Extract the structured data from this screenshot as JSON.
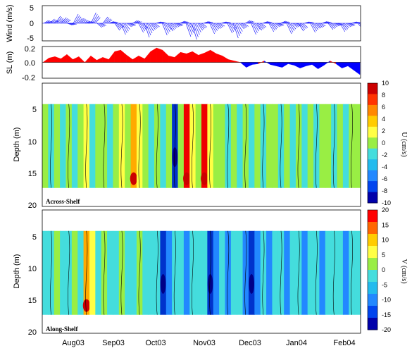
{
  "chart_data": [
    {
      "type": "vector",
      "ylabel": "Wind (m/s)",
      "yticks": [
        "5",
        "0",
        "-5"
      ],
      "ylim": [
        -5,
        5
      ],
      "series_color": "#1a1aff",
      "wind_v": [
        0.8,
        1.2,
        2.0,
        1.6,
        -0.5,
        2.6,
        1.4,
        0.6,
        3.0,
        -1.2,
        1.8,
        0.5,
        -2.0,
        -3.2,
        -1.0,
        0.8,
        -2.6,
        -4.0,
        -1.8,
        0.4,
        -3.4,
        -2.2,
        -1.0,
        0.6,
        -3.8,
        -4.6,
        -2.0,
        0.5,
        -3.0,
        -1.5,
        0.4,
        -2.8,
        -4.2,
        -1.6,
        0.8,
        -3.2,
        -2.0,
        0.5,
        -2.4,
        -1.0,
        0.6,
        -3.0,
        -1.2,
        -2.2,
        0.4,
        -2.6,
        -1.4,
        0.5,
        -1.8,
        -0.8,
        -2.4,
        -1.0,
        0.4,
        -1.6
      ]
    },
    {
      "type": "area",
      "ylabel": "SL (m)",
      "yticks": [
        "0.2",
        "0.0",
        "-0.2"
      ],
      "ylim": [
        -0.22,
        0.22
      ],
      "positive_color": "#ff0000",
      "negative_color": "#0000ff",
      "sea_level": [
        0.0,
        0.06,
        0.08,
        0.05,
        0.11,
        0.04,
        0.08,
        0.0,
        0.09,
        0.03,
        0.07,
        0.04,
        0.15,
        0.17,
        0.1,
        0.04,
        0.09,
        0.05,
        0.15,
        0.2,
        0.17,
        0.09,
        0.07,
        0.14,
        0.12,
        0.15,
        0.1,
        0.13,
        0.17,
        0.12,
        0.09,
        0.04,
        0.02,
        0.0,
        -0.07,
        -0.03,
        -0.02,
        0.02,
        -0.03,
        -0.05,
        -0.07,
        -0.02,
        -0.04,
        -0.08,
        -0.05,
        -0.03,
        -0.09,
        -0.04,
        0.02,
        -0.02,
        -0.08,
        -0.05,
        -0.11,
        -0.17
      ]
    },
    {
      "type": "heatmap",
      "ylabel": "Depth (m)",
      "yticks": [
        "5",
        "10",
        "15",
        "20"
      ],
      "ylim": [
        20,
        0
      ],
      "panel_label": "Across-Shelf",
      "colorbar_label": "U (cm/s)",
      "colorbar_ticks": [
        "10",
        "8",
        "6",
        "4",
        "2",
        "0",
        "-2",
        "-4",
        "-6",
        "-8",
        "-10"
      ],
      "colorbar_colors": [
        "#cc0000",
        "#ff3300",
        "#ff8800",
        "#ffcc00",
        "#ffff44",
        "#99ee44",
        "#44dddd",
        "#22bbee",
        "#2288ff",
        "#0044ee",
        "#0000aa"
      ],
      "columns": [
        "g",
        "c",
        "g",
        "c",
        "g",
        "c",
        "g",
        "y",
        "c",
        "g",
        "g",
        "c",
        "g",
        "y",
        "g",
        "o",
        "y",
        "g",
        "c",
        "g",
        "c",
        "g",
        "B",
        "g",
        "r",
        "y",
        "g",
        "r",
        "y",
        "g",
        "g",
        "c",
        "g",
        "c",
        "g",
        "c",
        "g",
        "c",
        "g",
        "g",
        "c",
        "g",
        "c",
        "g",
        "c",
        "g",
        "c",
        "g",
        "g",
        "c",
        "g",
        "c",
        "g",
        "g"
      ]
    },
    {
      "type": "heatmap",
      "ylabel": "Depth (m)",
      "yticks": [
        "5",
        "10",
        "15",
        "20"
      ],
      "ylim": [
        20,
        0
      ],
      "panel_label": "Along-Shelf",
      "colorbar_label": "V (cm/s)",
      "colorbar_ticks": [
        "20",
        "15",
        "10",
        "5",
        "0",
        "-5",
        "-10",
        "-15",
        "-20"
      ],
      "colorbar_colors": [
        "#ff0000",
        "#ff6600",
        "#ffcc00",
        "#ffff44",
        "#99ee44",
        "#44dddd",
        "#22bbee",
        "#2288ff",
        "#0044ee",
        "#0000aa"
      ],
      "columns": [
        "c",
        "c",
        "g",
        "c",
        "c",
        "g",
        "c",
        "o",
        "y",
        "c",
        "g",
        "c",
        "c",
        "g",
        "c",
        "c",
        "g",
        "c",
        "c",
        "c",
        "B",
        "b",
        "c",
        "c",
        "b",
        "c",
        "c",
        "c",
        "B",
        "b",
        "c",
        "b",
        "c",
        "c",
        "b",
        "B",
        "b",
        "c",
        "b",
        "c",
        "c",
        "b",
        "c",
        "c",
        "b",
        "c",
        "c",
        "b",
        "c",
        "c",
        "c",
        "b",
        "c",
        "c"
      ]
    }
  ],
  "x_axis": {
    "ticks": [
      "Aug03",
      "Sep03",
      "Oct03",
      "Nov03",
      "Dec03",
      "Jan04",
      "Feb04"
    ]
  }
}
